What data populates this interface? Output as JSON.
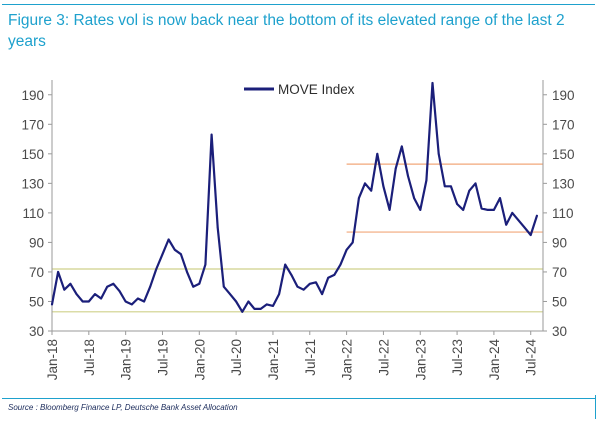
{
  "header": {
    "title": "Figure 3: Rates vol is now back near the bottom of its elevated range of the last 2 years"
  },
  "footer": {
    "source": "Source : Bloomberg Finance LP, Deutsche Bank Asset Allocation"
  },
  "colors": {
    "accent": "#1ea1cd",
    "series": "#1b1f7a",
    "orange_band": "#f2a77a",
    "olive_band": "#cfd08a",
    "axis": "#9a9a9a"
  },
  "chart_data": {
    "type": "line",
    "xlabel": "",
    "ylabel": "",
    "ylim": [
      30,
      200
    ],
    "y_ticks": [
      30,
      50,
      70,
      90,
      110,
      130,
      150,
      170,
      190
    ],
    "y_tick_labels": [
      "30",
      "50",
      "70",
      "90",
      "110",
      "130",
      "150",
      "170",
      "190"
    ],
    "right_axis_ticks": [
      30,
      50,
      70,
      90,
      110,
      130,
      150,
      170,
      190
    ],
    "right_axis_tick_labels": [
      "30",
      "50",
      "70",
      "90",
      "110",
      "130",
      "150",
      "170",
      "190"
    ],
    "x_ticks": [
      "Jan-18",
      "Jul-18",
      "Jan-19",
      "Jul-19",
      "Jan-20",
      "Jul-20",
      "Jan-21",
      "Jul-21",
      "Jan-22",
      "Jul-22",
      "Jan-23",
      "Jul-23",
      "Jan-24",
      "Jul-24"
    ],
    "xlim": [
      "2018-01",
      "2024-09"
    ],
    "legend": {
      "position": "top-center",
      "entries": [
        "MOVE Index"
      ]
    },
    "grid": false,
    "reference_lines": [
      {
        "y": 143,
        "x_start": "2022-01",
        "x_end": "2024-09",
        "color": "orange"
      },
      {
        "y": 97,
        "x_start": "2022-01",
        "x_end": "2024-09",
        "color": "orange"
      },
      {
        "y": 72,
        "x_start": "2018-01",
        "x_end": "2024-09",
        "color": "olive"
      },
      {
        "y": 43,
        "x_start": "2018-01",
        "x_end": "2024-09",
        "color": "olive"
      }
    ],
    "series": [
      {
        "name": "MOVE Index",
        "x": [
          "2018-01",
          "2018-02",
          "2018-03",
          "2018-04",
          "2018-05",
          "2018-06",
          "2018-07",
          "2018-08",
          "2018-09",
          "2018-10",
          "2018-11",
          "2018-12",
          "2019-01",
          "2019-02",
          "2019-03",
          "2019-04",
          "2019-05",
          "2019-06",
          "2019-07",
          "2019-08",
          "2019-09",
          "2019-10",
          "2019-11",
          "2019-12",
          "2020-01",
          "2020-02",
          "2020-03",
          "2020-04",
          "2020-05",
          "2020-06",
          "2020-07",
          "2020-08",
          "2020-09",
          "2020-10",
          "2020-11",
          "2020-12",
          "2021-01",
          "2021-02",
          "2021-03",
          "2021-04",
          "2021-05",
          "2021-06",
          "2021-07",
          "2021-08",
          "2021-09",
          "2021-10",
          "2021-11",
          "2021-12",
          "2022-01",
          "2022-02",
          "2022-03",
          "2022-04",
          "2022-05",
          "2022-06",
          "2022-07",
          "2022-08",
          "2022-09",
          "2022-10",
          "2022-11",
          "2022-12",
          "2023-01",
          "2023-02",
          "2023-03",
          "2023-04",
          "2023-05",
          "2023-06",
          "2023-07",
          "2023-08",
          "2023-09",
          "2023-10",
          "2023-11",
          "2023-12",
          "2024-01",
          "2024-02",
          "2024-03",
          "2024-04",
          "2024-05",
          "2024-06",
          "2024-07",
          "2024-08"
        ],
        "y": [
          48,
          70,
          58,
          62,
          55,
          50,
          50,
          55,
          52,
          60,
          62,
          57,
          50,
          48,
          52,
          50,
          60,
          72,
          82,
          92,
          85,
          82,
          70,
          60,
          62,
          75,
          163,
          100,
          60,
          55,
          50,
          43,
          50,
          45,
          45,
          48,
          47,
          55,
          75,
          68,
          60,
          58,
          62,
          63,
          55,
          66,
          68,
          75,
          85,
          90,
          120,
          130,
          125,
          150,
          128,
          112,
          140,
          155,
          135,
          120,
          112,
          132,
          198,
          150,
          128,
          128,
          116,
          112,
          125,
          130,
          113,
          112,
          112,
          120,
          102,
          110,
          105,
          100,
          95,
          108
        ]
      }
    ]
  }
}
